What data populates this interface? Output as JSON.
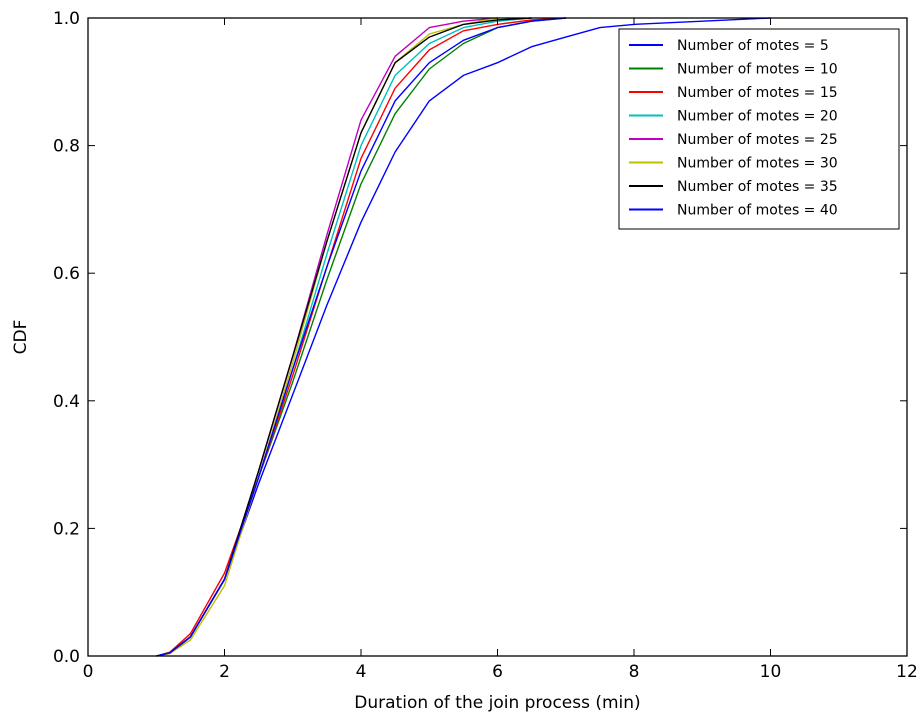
{
  "chart_data": {
    "type": "line",
    "title": "",
    "xlabel": "Duration of the join process (min)",
    "ylabel": "CDF",
    "xlim": [
      0,
      12
    ],
    "ylim": [
      0.0,
      1.0
    ],
    "xticks": [
      0,
      2,
      4,
      6,
      8,
      10,
      12
    ],
    "xtick_labels": [
      "0",
      "2",
      "4",
      "6",
      "8",
      "10",
      "12"
    ],
    "yticks": [
      0.0,
      0.2,
      0.4,
      0.6,
      0.8,
      1.0
    ],
    "ytick_labels": [
      "0.0",
      "0.2",
      "0.4",
      "0.6",
      "0.8",
      "1.0"
    ],
    "grid": false,
    "legend_position": "top-right",
    "series": [
      {
        "name": "Number of motes = 5",
        "color": "#0000ff",
        "points": [
          [
            1.0,
            0.0
          ],
          [
            1.2,
            0.005
          ],
          [
            1.5,
            0.03
          ],
          [
            2.0,
            0.12
          ],
          [
            2.5,
            0.27
          ],
          [
            3.0,
            0.41
          ],
          [
            3.5,
            0.55
          ],
          [
            4.0,
            0.68
          ],
          [
            4.5,
            0.79
          ],
          [
            5.0,
            0.87
          ],
          [
            5.5,
            0.91
          ],
          [
            6.0,
            0.93
          ],
          [
            6.5,
            0.955
          ],
          [
            7.0,
            0.97
          ],
          [
            7.5,
            0.985
          ],
          [
            8.0,
            0.99
          ],
          [
            9.0,
            0.995
          ],
          [
            10.0,
            1.0
          ]
        ]
      },
      {
        "name": "Number of motes = 10",
        "color": "#008000",
        "points": [
          [
            1.0,
            0.0
          ],
          [
            1.2,
            0.004
          ],
          [
            1.5,
            0.03
          ],
          [
            2.0,
            0.12
          ],
          [
            2.5,
            0.28
          ],
          [
            3.0,
            0.43
          ],
          [
            3.5,
            0.59
          ],
          [
            4.0,
            0.74
          ],
          [
            4.5,
            0.85
          ],
          [
            5.0,
            0.92
          ],
          [
            5.5,
            0.96
          ],
          [
            6.0,
            0.985
          ],
          [
            6.5,
            0.995
          ],
          [
            7.0,
            1.0
          ]
        ]
      },
      {
        "name": "Number of motes = 15",
        "color": "#ff0000",
        "points": [
          [
            1.0,
            0.0
          ],
          [
            1.2,
            0.006
          ],
          [
            1.5,
            0.035
          ],
          [
            2.0,
            0.13
          ],
          [
            2.5,
            0.28
          ],
          [
            3.0,
            0.44
          ],
          [
            3.5,
            0.61
          ],
          [
            4.0,
            0.78
          ],
          [
            4.5,
            0.89
          ],
          [
            5.0,
            0.95
          ],
          [
            5.5,
            0.98
          ],
          [
            6.0,
            0.99
          ],
          [
            6.5,
            0.997
          ],
          [
            7.0,
            1.0
          ]
        ]
      },
      {
        "name": "Number of motes = 20",
        "color": "#00bfbf",
        "points": [
          [
            1.0,
            0.0
          ],
          [
            1.2,
            0.005
          ],
          [
            1.5,
            0.03
          ],
          [
            2.0,
            0.12
          ],
          [
            2.5,
            0.28
          ],
          [
            3.0,
            0.45
          ],
          [
            3.5,
            0.63
          ],
          [
            4.0,
            0.8
          ],
          [
            4.5,
            0.91
          ],
          [
            5.0,
            0.96
          ],
          [
            5.5,
            0.985
          ],
          [
            6.0,
            0.995
          ],
          [
            6.5,
            1.0
          ]
        ]
      },
      {
        "name": "Number of motes = 25",
        "color": "#bf00bf",
        "points": [
          [
            1.0,
            0.0
          ],
          [
            1.2,
            0.005
          ],
          [
            1.5,
            0.03
          ],
          [
            2.0,
            0.12
          ],
          [
            2.5,
            0.29
          ],
          [
            3.0,
            0.47
          ],
          [
            3.5,
            0.66
          ],
          [
            4.0,
            0.84
          ],
          [
            4.5,
            0.94
          ],
          [
            5.0,
            0.985
          ],
          [
            5.5,
            0.995
          ],
          [
            6.0,
            1.0
          ]
        ]
      },
      {
        "name": "Number of motes = 30",
        "color": "#bfbf00",
        "points": [
          [
            1.0,
            0.0
          ],
          [
            1.2,
            0.004
          ],
          [
            1.5,
            0.025
          ],
          [
            2.0,
            0.11
          ],
          [
            2.5,
            0.28
          ],
          [
            3.0,
            0.46
          ],
          [
            3.5,
            0.65
          ],
          [
            4.0,
            0.82
          ],
          [
            4.5,
            0.93
          ],
          [
            5.0,
            0.975
          ],
          [
            5.5,
            0.99
          ],
          [
            6.0,
            1.0
          ]
        ]
      },
      {
        "name": "Number of motes = 35",
        "color": "#000000",
        "points": [
          [
            1.0,
            0.0
          ],
          [
            1.2,
            0.005
          ],
          [
            1.5,
            0.03
          ],
          [
            2.0,
            0.12
          ],
          [
            2.5,
            0.29
          ],
          [
            3.0,
            0.47
          ],
          [
            3.5,
            0.65
          ],
          [
            4.0,
            0.82
          ],
          [
            4.5,
            0.93
          ],
          [
            5.0,
            0.97
          ],
          [
            5.5,
            0.99
          ],
          [
            6.0,
            0.997
          ],
          [
            6.5,
            1.0
          ]
        ]
      },
      {
        "name": "Number of motes = 40",
        "color": "#0000ff",
        "points": [
          [
            1.0,
            0.0
          ],
          [
            1.2,
            0.005
          ],
          [
            1.5,
            0.03
          ],
          [
            2.0,
            0.12
          ],
          [
            2.5,
            0.28
          ],
          [
            3.0,
            0.45
          ],
          [
            3.5,
            0.61
          ],
          [
            4.0,
            0.76
          ],
          [
            4.5,
            0.87
          ],
          [
            5.0,
            0.93
          ],
          [
            5.5,
            0.965
          ],
          [
            6.0,
            0.985
          ],
          [
            6.5,
            0.995
          ],
          [
            7.0,
            1.0
          ]
        ]
      }
    ]
  }
}
